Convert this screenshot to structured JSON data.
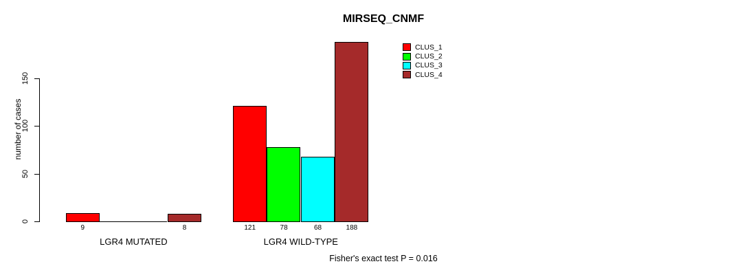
{
  "title": "MIRSEQ_CNMF",
  "caption": "Fisher's exact test P = 0.016",
  "chart_data": {
    "type": "bar",
    "title": "MIRSEQ_CNMF",
    "xlabel": "",
    "ylabel": "number of cases",
    "ylim": [
      0,
      195
    ],
    "yticks": [
      0,
      50,
      100,
      150
    ],
    "grid": false,
    "legend_position": "top-right",
    "categories": [
      "LGR4 MUTATED",
      "LGR4 WILD-TYPE"
    ],
    "series": [
      {
        "name": "CLUS_1",
        "color": "#FF0000",
        "values": [
          9,
          121
        ]
      },
      {
        "name": "CLUS_2",
        "color": "#00FF00",
        "values": [
          0,
          78
        ]
      },
      {
        "name": "CLUS_3",
        "color": "#00FFFF",
        "values": [
          0,
          68
        ]
      },
      {
        "name": "CLUS_4",
        "color": "#A52A2A",
        "values": [
          8,
          188
        ]
      }
    ],
    "annotation": "Fisher's exact test P = 0.016"
  }
}
